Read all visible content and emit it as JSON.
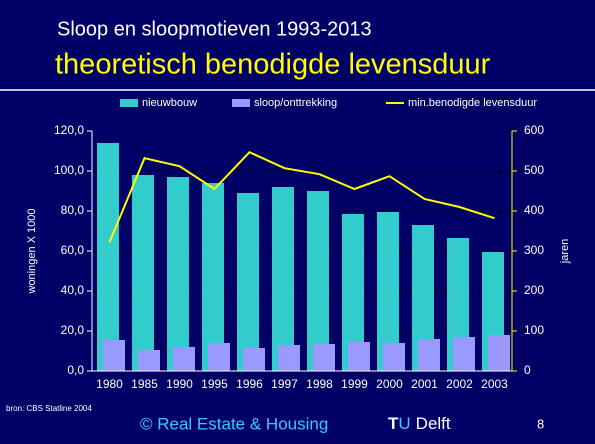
{
  "slide": {
    "title": "Sloop en sloopmotieven 1993-2013",
    "subtitle": "theoretisch benodigde levensduur",
    "footer": {
      "source": "bron: CBS Statline 2004",
      "copyright": "© Real Estate & Housing",
      "logo_t": "T",
      "logo_u": "U",
      "logo_rest": "Delft",
      "page": "8"
    }
  },
  "chart_data": {
    "type": "bar",
    "categories": [
      "1980",
      "1985",
      "1990",
      "1995",
      "1996",
      "1997",
      "1998",
      "1999",
      "2000",
      "2001",
      "2002",
      "2003"
    ],
    "series": [
      {
        "name": "nieuwbouw",
        "color": "#33cccc",
        "values": [
          114,
          98,
          97,
          94,
          89,
          92,
          90,
          78.5,
          79.5,
          73,
          66.5,
          59.5
        ]
      },
      {
        "name": "sloop/onttrekking",
        "color": "#9999ff",
        "values": [
          15.5,
          10.5,
          12,
          14,
          11.5,
          13,
          13.5,
          14.5,
          14,
          16,
          17,
          18
        ]
      },
      {
        "name": "min.benodigde levensduur",
        "color": "#ffff00",
        "type": "line",
        "axis": "y2",
        "values": [
          322,
          532,
          512,
          455,
          547,
          507,
          492,
          455,
          487,
          430,
          410,
          382
        ]
      }
    ],
    "ylabel": "woningen X 1000",
    "y2label": "jaren",
    "ylim": [
      0,
      120
    ],
    "yticks": [
      {
        "value": 0,
        "label": "0,0"
      },
      {
        "value": 20,
        "label": "20,0"
      },
      {
        "value": 40,
        "label": "40,0"
      },
      {
        "value": 60,
        "label": "60,0"
      },
      {
        "value": 80,
        "label": "80,0"
      },
      {
        "value": 100,
        "label": "100,0"
      },
      {
        "value": 120,
        "label": "120,0"
      }
    ],
    "y2lim": [
      0,
      600
    ],
    "y2ticks": [
      0,
      100,
      200,
      300,
      400,
      500,
      600
    ],
    "grid": true,
    "legend": "top"
  }
}
